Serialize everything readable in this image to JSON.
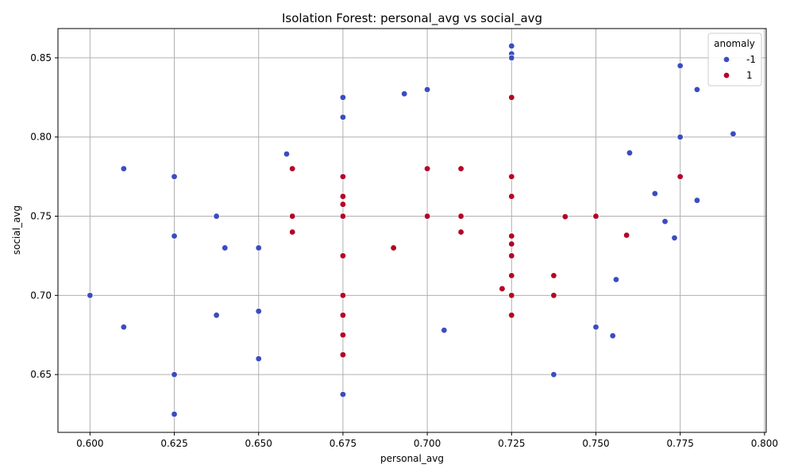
{
  "chart_data": {
    "type": "scatter",
    "title": "Isolation Forest: personal_avg vs social_avg",
    "xlabel": "personal_avg",
    "ylabel": "social_avg",
    "xlim": [
      0.5905,
      0.8005
    ],
    "ylim": [
      0.6135,
      0.8685
    ],
    "xticks": [
      "0.600",
      "0.625",
      "0.650",
      "0.675",
      "0.700",
      "0.725",
      "0.750",
      "0.775",
      "0.800"
    ],
    "yticks": [
      "0.65",
      "0.70",
      "0.75",
      "0.80",
      "0.85"
    ],
    "grid": true,
    "legend": {
      "title": "anomaly",
      "placement": "top-right"
    },
    "series": [
      {
        "name": "-1",
        "color": "#3b4cc0",
        "points": [
          [
            0.6,
            0.7
          ],
          [
            0.61,
            0.78
          ],
          [
            0.61,
            0.68
          ],
          [
            0.625,
            0.775
          ],
          [
            0.625,
            0.7375
          ],
          [
            0.625,
            0.65
          ],
          [
            0.625,
            0.625
          ],
          [
            0.6375,
            0.75
          ],
          [
            0.6375,
            0.6875
          ],
          [
            0.64,
            0.73
          ],
          [
            0.65,
            0.73
          ],
          [
            0.65,
            0.69
          ],
          [
            0.65,
            0.66
          ],
          [
            0.6583,
            0.7893
          ],
          [
            0.675,
            0.825
          ],
          [
            0.675,
            0.8125
          ],
          [
            0.675,
            0.6375
          ],
          [
            0.6932,
            0.8273
          ],
          [
            0.7,
            0.83
          ],
          [
            0.705,
            0.678
          ],
          [
            0.725,
            0.8575
          ],
          [
            0.725,
            0.8525
          ],
          [
            0.725,
            0.85
          ],
          [
            0.7375,
            0.65
          ],
          [
            0.75,
            0.68
          ],
          [
            0.755,
            0.6745
          ],
          [
            0.756,
            0.71
          ],
          [
            0.76,
            0.79
          ],
          [
            0.7675,
            0.7643
          ],
          [
            0.7705,
            0.7467
          ],
          [
            0.7733,
            0.7363
          ],
          [
            0.775,
            0.845
          ],
          [
            0.775,
            0.8
          ],
          [
            0.78,
            0.83
          ],
          [
            0.78,
            0.76
          ],
          [
            0.7907,
            0.802
          ]
        ]
      },
      {
        "name": "1",
        "color": "#b40426",
        "points": [
          [
            0.66,
            0.78
          ],
          [
            0.66,
            0.75
          ],
          [
            0.66,
            0.74
          ],
          [
            0.675,
            0.775
          ],
          [
            0.675,
            0.7625
          ],
          [
            0.675,
            0.7575
          ],
          [
            0.675,
            0.75
          ],
          [
            0.675,
            0.725
          ],
          [
            0.675,
            0.7
          ],
          [
            0.675,
            0.6875
          ],
          [
            0.675,
            0.675
          ],
          [
            0.675,
            0.6625
          ],
          [
            0.69,
            0.73
          ],
          [
            0.7,
            0.78
          ],
          [
            0.7,
            0.75
          ],
          [
            0.71,
            0.78
          ],
          [
            0.71,
            0.75
          ],
          [
            0.71,
            0.74
          ],
          [
            0.7222,
            0.7042
          ],
          [
            0.725,
            0.825
          ],
          [
            0.725,
            0.775
          ],
          [
            0.725,
            0.7625
          ],
          [
            0.725,
            0.7375
          ],
          [
            0.725,
            0.7325
          ],
          [
            0.725,
            0.725
          ],
          [
            0.725,
            0.7125
          ],
          [
            0.725,
            0.7
          ],
          [
            0.725,
            0.6875
          ],
          [
            0.7375,
            0.7125
          ],
          [
            0.7375,
            0.7
          ],
          [
            0.7409,
            0.7497
          ],
          [
            0.75,
            0.75
          ],
          [
            0.7591,
            0.738
          ],
          [
            0.775,
            0.775
          ]
        ]
      }
    ]
  }
}
